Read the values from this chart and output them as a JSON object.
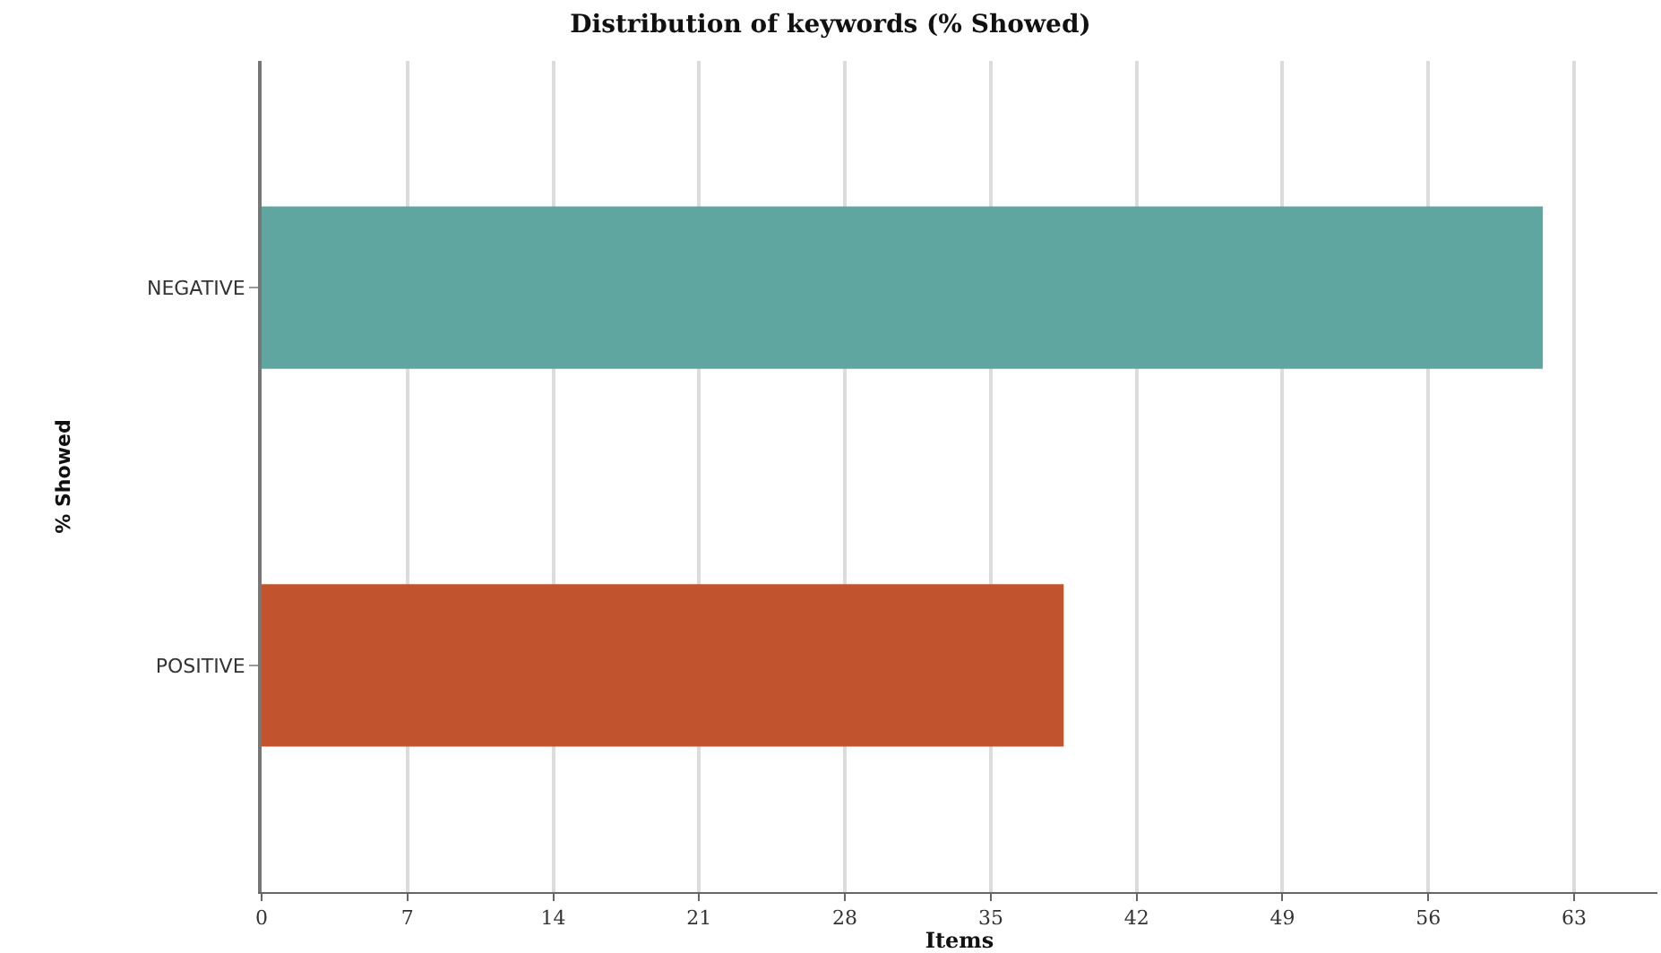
{
  "chart_data": {
    "type": "bar",
    "orientation": "horizontal",
    "title": "Distribution of keywords (% Showed)",
    "xlabel": "Items",
    "ylabel": "% Showed",
    "categories": [
      "NEGATIVE",
      "POSITIVE"
    ],
    "values": [
      61.5,
      38.5
    ],
    "colors": [
      "#5fa6a0",
      "#c2532f"
    ],
    "xlim": [
      0,
      67
    ],
    "xticks": [
      0,
      7,
      14,
      21,
      28,
      35,
      42,
      49,
      56,
      63
    ],
    "grid": "x"
  }
}
